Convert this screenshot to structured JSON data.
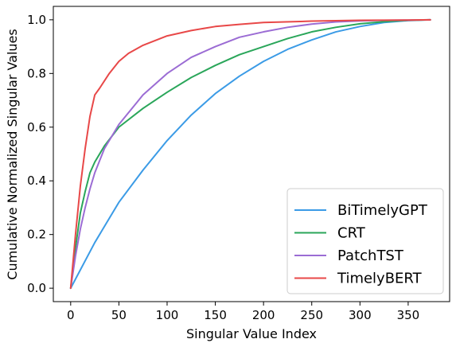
{
  "chart_data": {
    "type": "line",
    "title": "",
    "xlabel": "Singular Value Index",
    "ylabel": "Cumulative Normalized Singular Values",
    "xlim": [
      -18,
      393
    ],
    "ylim": [
      -0.05,
      1.05
    ],
    "xticks": [
      0,
      50,
      100,
      150,
      200,
      250,
      300,
      350
    ],
    "yticks": [
      0.0,
      0.2,
      0.4,
      0.6,
      0.8,
      1.0
    ],
    "xtick_labels": [
      "0",
      "50",
      "100",
      "150",
      "200",
      "250",
      "300",
      "350"
    ],
    "ytick_labels": [
      "0.0",
      "0.2",
      "0.4",
      "0.6",
      "0.8",
      "1.0"
    ],
    "grid": false,
    "legend_position": "lower-right",
    "series": [
      {
        "name": "BiTimelyGPT",
        "color": "#3b9be6",
        "x": [
          0,
          25,
          50,
          75,
          100,
          125,
          150,
          175,
          200,
          225,
          250,
          275,
          300,
          325,
          350,
          373
        ],
        "y": [
          0.0,
          0.17,
          0.32,
          0.44,
          0.55,
          0.645,
          0.725,
          0.79,
          0.845,
          0.89,
          0.925,
          0.955,
          0.975,
          0.99,
          0.997,
          1.0
        ]
      },
      {
        "name": "CRT",
        "color": "#2aa65a",
        "x": [
          0,
          5,
          10,
          15,
          20,
          25,
          35,
          50,
          75,
          100,
          125,
          150,
          175,
          200,
          225,
          250,
          275,
          300,
          325,
          350,
          373
        ],
        "y": [
          0.0,
          0.15,
          0.28,
          0.36,
          0.43,
          0.47,
          0.53,
          0.6,
          0.67,
          0.73,
          0.785,
          0.83,
          0.87,
          0.9,
          0.93,
          0.955,
          0.972,
          0.985,
          0.993,
          0.998,
          1.0
        ]
      },
      {
        "name": "PatchTST",
        "color": "#9b6cd4",
        "x": [
          0,
          5,
          10,
          15,
          20,
          25,
          35,
          50,
          75,
          100,
          125,
          150,
          175,
          200,
          225,
          250,
          275,
          300,
          325,
          350,
          373
        ],
        "y": [
          0.0,
          0.12,
          0.22,
          0.3,
          0.37,
          0.43,
          0.52,
          0.61,
          0.72,
          0.8,
          0.86,
          0.9,
          0.935,
          0.955,
          0.972,
          0.984,
          0.992,
          0.996,
          0.998,
          0.999,
          1.0
        ]
      },
      {
        "name": "TimelyBERT",
        "color": "#e84848",
        "x": [
          0,
          5,
          10,
          15,
          20,
          25,
          30,
          40,
          50,
          60,
          75,
          100,
          125,
          150,
          175,
          200,
          250,
          300,
          350,
          373
        ],
        "y": [
          0.0,
          0.2,
          0.38,
          0.52,
          0.64,
          0.72,
          0.745,
          0.8,
          0.845,
          0.875,
          0.905,
          0.94,
          0.96,
          0.975,
          0.983,
          0.99,
          0.995,
          0.998,
          0.999,
          1.0
        ]
      }
    ]
  }
}
